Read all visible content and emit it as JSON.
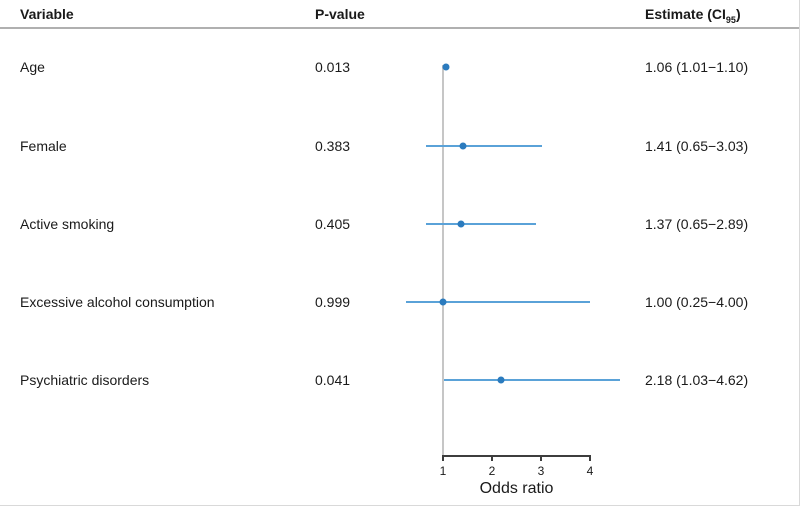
{
  "header": {
    "variable": "Variable",
    "p_value": "P-value",
    "estimate_prefix": "Estimate (CI",
    "estimate_sub": "95",
    "estimate_suffix": ")"
  },
  "rows": [
    {
      "variable": "Age",
      "p_value": "0.013",
      "estimate": "1.06 (1.01−1.10)"
    },
    {
      "variable": "Female",
      "p_value": "0.383",
      "estimate": "1.41 (0.65−3.03)"
    },
    {
      "variable": "Active smoking",
      "p_value": "0.405",
      "estimate": "1.37 (0.65−2.89)"
    },
    {
      "variable": "Excessive alcohol consumption",
      "p_value": "0.999",
      "estimate": "1.00 (0.25−4.00)"
    },
    {
      "variable": "Psychiatric disorders",
      "p_value": "0.041",
      "estimate": "2.18 (1.03−4.62)"
    }
  ],
  "chart_data": {
    "type": "scatter",
    "variant": "forest-plot",
    "title": "",
    "xlabel": "Odds ratio",
    "categories": [
      "Age",
      "Female",
      "Active smoking",
      "Excessive alcohol consumption",
      "Psychiatric disorders"
    ],
    "series": [
      {
        "name": "Age",
        "estimate": 1.06,
        "ci_low": 1.01,
        "ci_high": 1.1,
        "p_value": 0.013
      },
      {
        "name": "Female",
        "estimate": 1.41,
        "ci_low": 0.65,
        "ci_high": 3.03,
        "p_value": 0.383
      },
      {
        "name": "Active smoking",
        "estimate": 1.37,
        "ci_low": 0.65,
        "ci_high": 2.89,
        "p_value": 0.405
      },
      {
        "name": "Excessive alcohol consumption",
        "estimate": 1.0,
        "ci_low": 0.25,
        "ci_high": 4.0,
        "p_value": 0.999
      },
      {
        "name": "Psychiatric disorders",
        "estimate": 2.18,
        "ci_low": 1.03,
        "ci_high": 4.62,
        "p_value": 0.041
      }
    ],
    "x_ticks": [
      1,
      2,
      3,
      4
    ],
    "axis_range": [
      1,
      4
    ],
    "reference_line_x": 1,
    "grid": false,
    "legend": false
  },
  "colors": {
    "ci_line": "#5aa2d8",
    "estimate_dot": "#2b7bbe",
    "reference_line": "#c6c6c6",
    "axis": "#3d3d3d",
    "header_rule": "#b0b0b0"
  }
}
